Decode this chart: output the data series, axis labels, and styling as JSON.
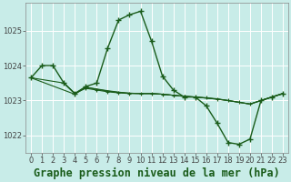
{
  "title": "Graphe pression niveau de la mer (hPa)",
  "bg_color": "#c8ece8",
  "grid_color": "#ffffff",
  "line_color": "#1a5c1a",
  "ylim": [
    1021.5,
    1025.8
  ],
  "yticks": [
    1022,
    1023,
    1024,
    1025
  ],
  "xlim": [
    -0.5,
    23.5
  ],
  "xticks": [
    0,
    1,
    2,
    3,
    4,
    5,
    6,
    7,
    8,
    9,
    10,
    11,
    12,
    13,
    14,
    15,
    16,
    17,
    18,
    19,
    20,
    21,
    22,
    23
  ],
  "tick_fontsize": 6,
  "title_fontsize": 8.5,
  "line1_x": [
    0,
    1,
    2,
    3,
    4,
    5,
    6,
    7,
    8,
    9,
    10,
    11,
    12,
    13,
    14,
    15,
    16,
    17,
    18,
    19,
    20,
    21,
    22,
    23
  ],
  "line1_y": [
    1023.65,
    1024.0,
    1024.0,
    1023.5,
    1023.2,
    1023.4,
    1023.5,
    1024.5,
    1025.3,
    1025.45,
    1025.55,
    1024.7,
    1023.7,
    1023.3,
    1023.1,
    1023.1,
    1022.85,
    1022.35,
    1021.8,
    1021.75,
    1021.9,
    1023.0,
    1023.1,
    1023.2
  ],
  "line2_x": [
    0,
    3,
    4,
    5,
    6,
    7,
    8,
    9,
    10,
    11,
    12,
    13,
    14,
    15,
    16,
    17,
    18,
    19,
    20,
    21,
    22,
    23
  ],
  "line2_y": [
    1023.65,
    1023.5,
    1023.2,
    1023.35,
    1023.3,
    1023.25,
    1023.22,
    1023.2,
    1023.2,
    1023.2,
    1023.18,
    1023.15,
    1023.12,
    1023.1,
    1023.08,
    1023.05,
    1023.0,
    1022.95,
    1022.9,
    1023.0,
    1023.1,
    1023.2
  ],
  "line3_x": [
    0,
    4,
    5,
    6,
    7,
    8,
    9,
    10,
    11,
    12,
    13,
    14,
    15,
    16,
    17,
    18,
    19,
    20,
    21,
    22,
    23
  ],
  "line3_y": [
    1023.65,
    1023.18,
    1023.38,
    1023.33,
    1023.28,
    1023.24,
    1023.21,
    1023.2,
    1023.2,
    1023.18,
    1023.15,
    1023.12,
    1023.1,
    1023.07,
    1023.04,
    1023.0,
    1022.95,
    1022.9,
    1023.0,
    1023.1,
    1023.2
  ],
  "line4_x": [
    3,
    4,
    5,
    6,
    7,
    8,
    9,
    10,
    11,
    12,
    13,
    14,
    15,
    16,
    17,
    18,
    19,
    20,
    21,
    22,
    23
  ],
  "line4_y": [
    1023.5,
    1023.2,
    1023.38,
    1023.32,
    1023.27,
    1023.23,
    1023.21,
    1023.2,
    1023.2,
    1023.18,
    1023.15,
    1023.12,
    1023.1,
    1023.07,
    1023.04,
    1023.0,
    1022.95,
    1022.9,
    1023.0,
    1023.1,
    1023.2
  ]
}
